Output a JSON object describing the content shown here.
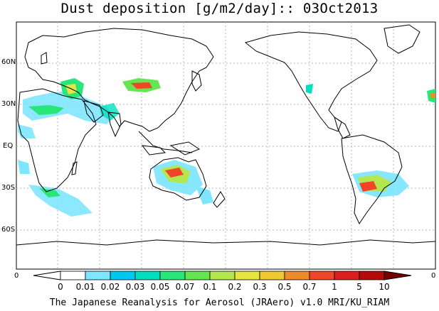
{
  "title": "Dust deposition [g/m2/day]:: 03Oct2013",
  "footer": "The Japanese Reanalysis for Aerosol (JRAero) v1.0 MRI/KU_RIAM",
  "lat_labels": [
    "60N",
    "30N",
    "EQ",
    "30S",
    "60S"
  ],
  "axis_zero_left": "0",
  "axis_zero_right": "0",
  "colorbar": {
    "labels": [
      "0",
      "0.01",
      "0.02",
      "0.03",
      "0.05",
      "0.07",
      "0.1",
      "0.2",
      "0.3",
      "0.5",
      "0.7",
      "1",
      "5",
      "10"
    ],
    "colors": [
      "#ffffff",
      "#ffffff",
      "#7fe6ff",
      "#00c8f0",
      "#00e0c0",
      "#28e67a",
      "#64e650",
      "#b4e650",
      "#e6e640",
      "#f0c832",
      "#f08c28",
      "#f04628",
      "#dc1e1e",
      "#b40a0a",
      "#780000"
    ]
  },
  "colors": {
    "land_outline": "#000000",
    "grid": "#b4b4b4"
  }
}
